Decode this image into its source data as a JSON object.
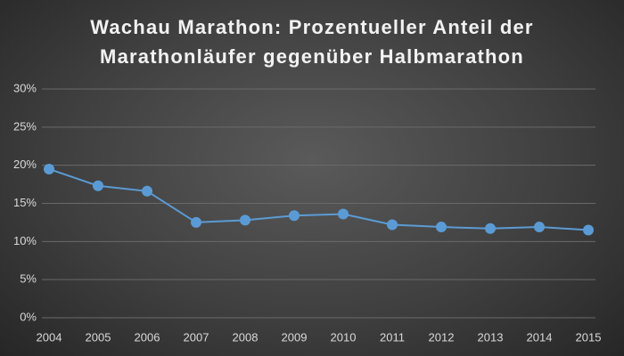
{
  "chart_data": {
    "type": "line",
    "title": "Wachau Marathon: Prozentueller Anteil der Marathonläufer gegenüber Halbmarathon",
    "x": [
      2004,
      2005,
      2006,
      2007,
      2008,
      2009,
      2010,
      2011,
      2012,
      2013,
      2014,
      2015
    ],
    "series": [
      {
        "color": "#5b9bd5",
        "values": [
          19.5,
          17.3,
          16.6,
          12.5,
          12.8,
          13.4,
          13.6,
          12.2,
          11.9,
          11.7,
          11.9,
          11.5
        ]
      }
    ],
    "xlim": [
      2004,
      2015
    ],
    "xticks": [
      2004,
      2005,
      2006,
      2007,
      2008,
      2009,
      2010,
      2011,
      2012,
      2013,
      2014,
      2015
    ],
    "ylim": [
      0,
      30
    ],
    "yticks": [
      {
        "value": 0,
        "label": "0%"
      },
      {
        "value": 5,
        "label": "5%"
      },
      {
        "value": 10,
        "label": "10%"
      },
      {
        "value": 15,
        "label": "15%"
      },
      {
        "value": 20,
        "label": "20%"
      },
      {
        "value": 25,
        "label": "25%"
      },
      {
        "value": 30,
        "label": "30%"
      }
    ],
    "grid": true
  }
}
